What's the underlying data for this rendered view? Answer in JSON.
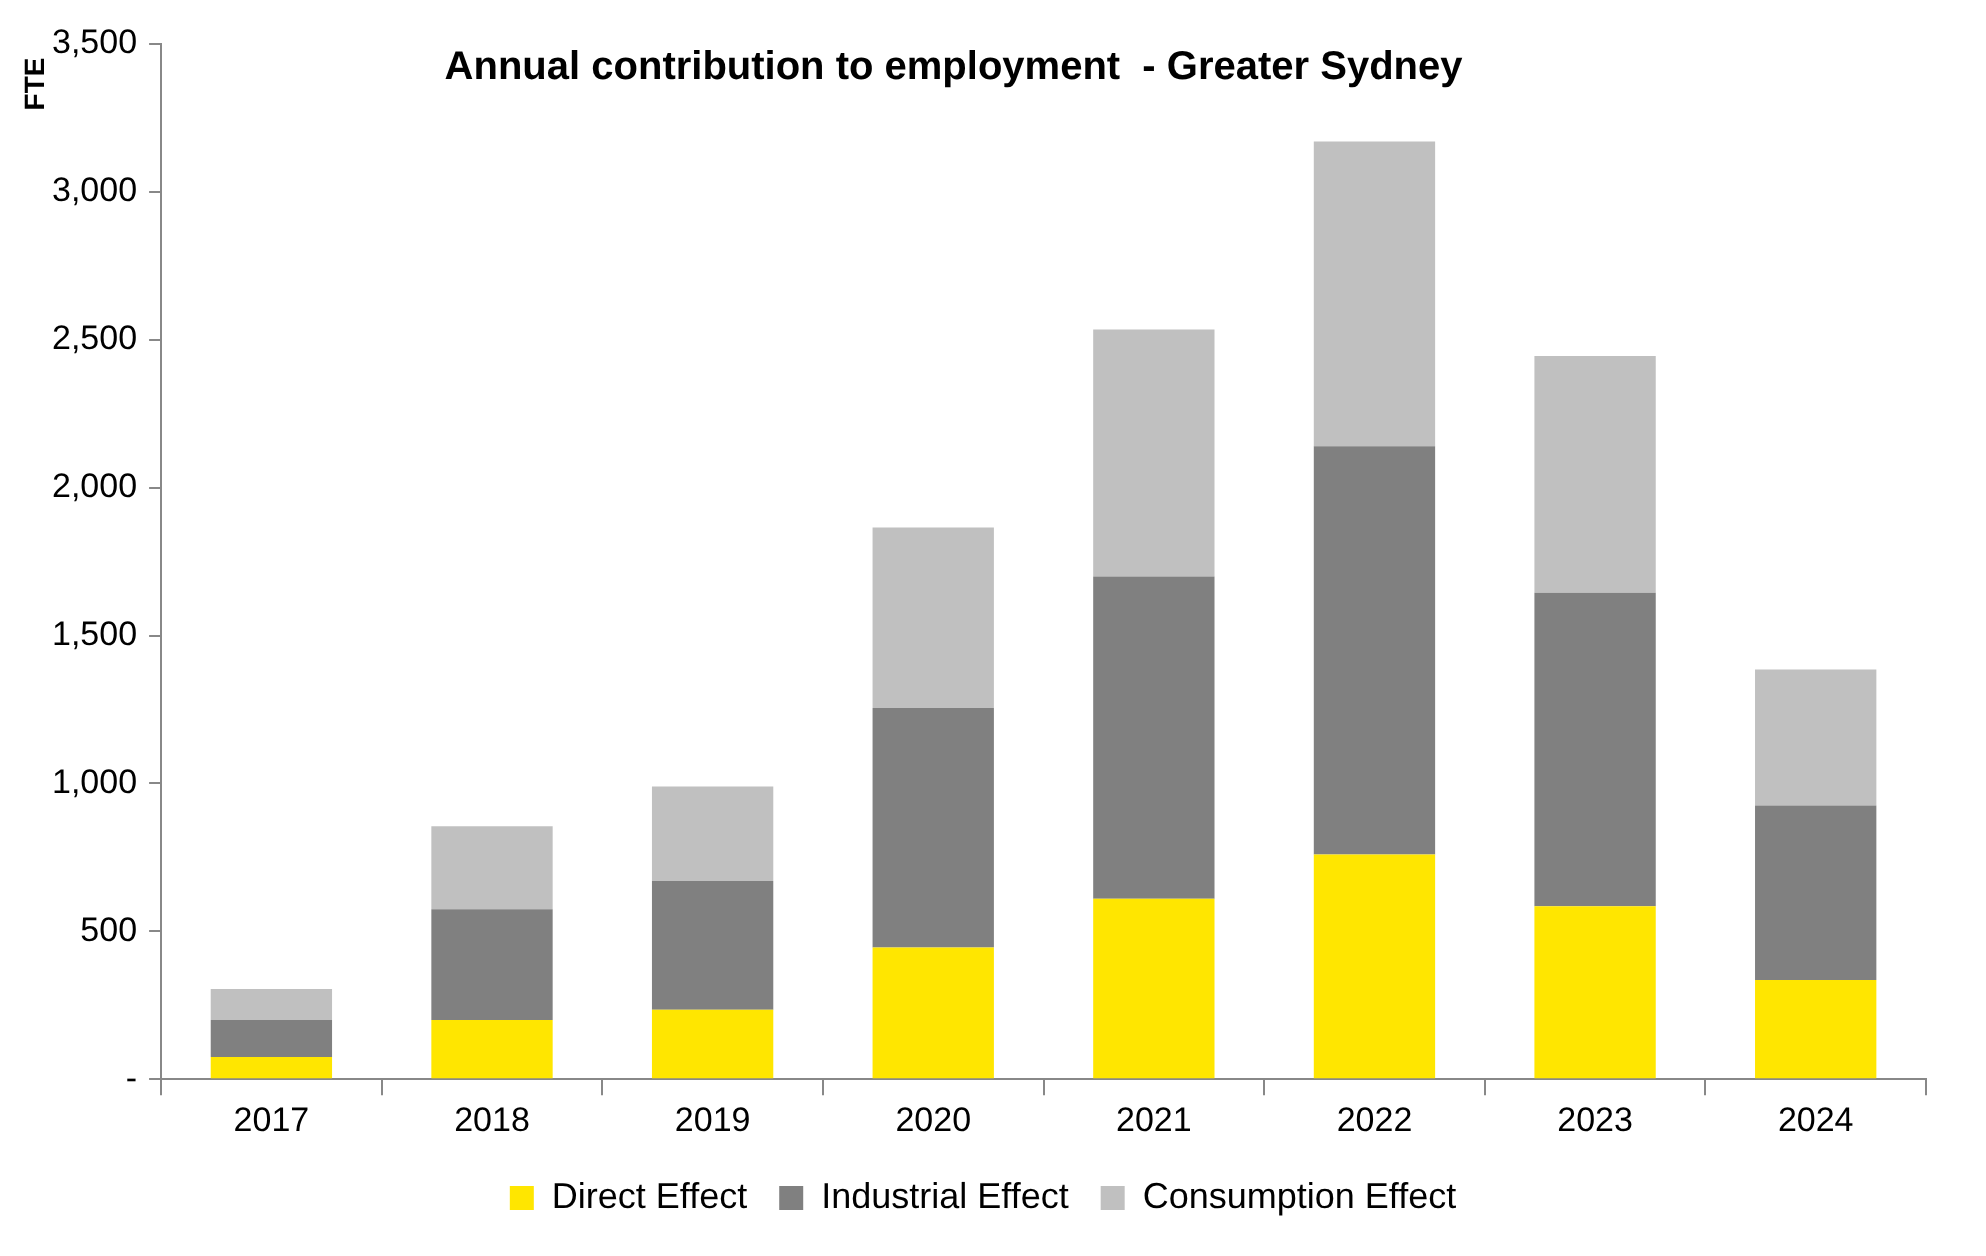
{
  "chart_data": {
    "type": "bar",
    "title": "Annual contribution to employment  - Greater Sydney",
    "ylabel": "FTE",
    "stacked": true,
    "categories": [
      "2017",
      "2018",
      "2019",
      "2020",
      "2021",
      "2022",
      "2023",
      "2024"
    ],
    "series": [
      {
        "name": "Direct Effect",
        "color": "#ffe600",
        "values": [
          75,
          200,
          235,
          445,
          610,
          760,
          585,
          335
        ]
      },
      {
        "name": "Industrial Effect",
        "color": "#808080",
        "values": [
          125,
          375,
          435,
          810,
          1090,
          1380,
          1060,
          590
        ]
      },
      {
        "name": "Consumption Effect",
        "color": "#c0c0c0",
        "values": [
          105,
          280,
          320,
          610,
          835,
          1030,
          800,
          460
        ]
      }
    ],
    "ylim": [
      0,
      3500
    ],
    "yticks": [
      {
        "value": 0,
        "label": "-"
      },
      500,
      {
        "value": 1000,
        "label": "1,000"
      },
      {
        "value": 1500,
        "label": "1,500"
      },
      {
        "value": 2000,
        "label": "2,000"
      },
      {
        "value": 2500,
        "label": "2,500"
      },
      {
        "value": 3000,
        "label": "3,000"
      },
      {
        "value": 3500,
        "label": "3,500"
      }
    ],
    "grid": false,
    "legend": "bottom"
  }
}
